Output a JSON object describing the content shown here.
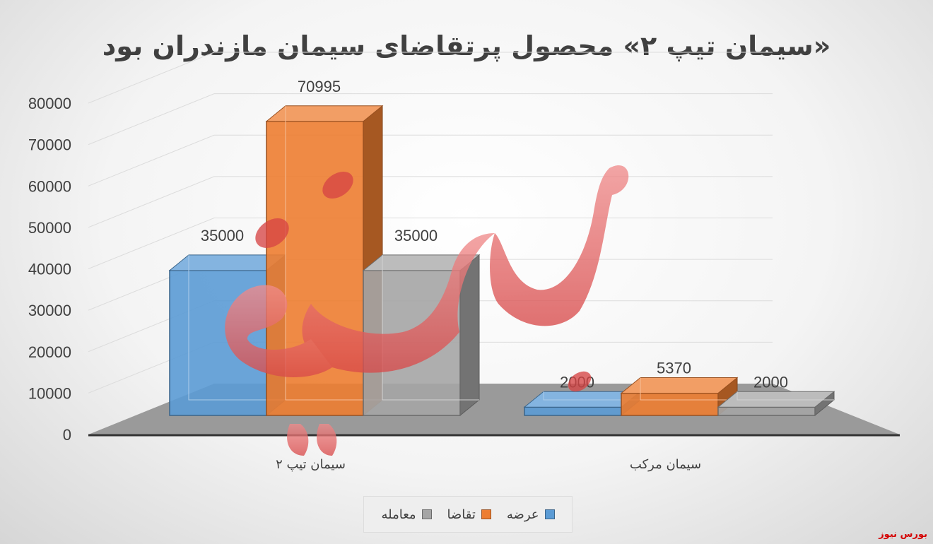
{
  "chart_data": {
    "type": "bar",
    "title": "«سیمان تیپ ۲» محصول پرتقاضای سیمان مازندران بود",
    "categories": [
      "سیمان تیپ ۲",
      "سیمان مرکب"
    ],
    "series": [
      {
        "name": "عرضه",
        "values": [
          35000,
          2000
        ],
        "labels": [
          "35000",
          "2000"
        ],
        "color": "#5b9bd5"
      },
      {
        "name": "تقاضا",
        "values": [
          70995,
          5370
        ],
        "labels": [
          "70995",
          "5370"
        ],
        "color": "#ed7d31"
      },
      {
        "name": "معامله",
        "values": [
          35000,
          2000
        ],
        "labels": [
          "35000",
          "2000"
        ],
        "color": "#a5a5a5"
      }
    ],
    "ylim": [
      0,
      80000
    ],
    "yticks": [
      "0",
      "10000",
      "20000",
      "30000",
      "40000",
      "50000",
      "60000",
      "70000",
      "80000"
    ],
    "grid": true,
    "legend_position": "bottom",
    "three_d": true
  },
  "watermark": "بورس نیوز",
  "source_label": "بورس نیوز"
}
